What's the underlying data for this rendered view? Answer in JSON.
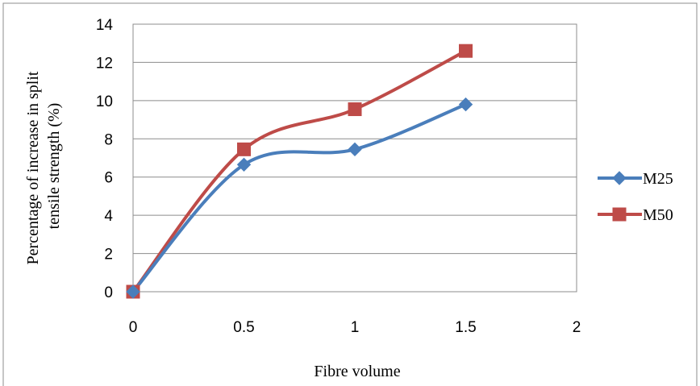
{
  "chart_data": {
    "type": "line",
    "smooth": true,
    "title": "",
    "xlabel": "Fibre volume",
    "ylabel_lines": [
      "Percentage of increase in split",
      "tensile strength (%)"
    ],
    "xlim": [
      0,
      2
    ],
    "ylim": [
      0,
      14
    ],
    "xticks": [
      0,
      0.5,
      1,
      1.5,
      2
    ],
    "xtick_labels": [
      "0",
      "0.5",
      "1",
      "1.5",
      "2"
    ],
    "yticks": [
      0,
      2,
      4,
      6,
      8,
      10,
      12,
      14
    ],
    "ytick_labels": [
      "0",
      "2",
      "4",
      "6",
      "8",
      "10",
      "12",
      "14"
    ],
    "grid": "horizontal",
    "legend": "right",
    "series": [
      {
        "name": "M25",
        "color": "#4a7ebb",
        "marker": "diamond",
        "x": [
          0,
          0.5,
          1,
          1.5
        ],
        "y": [
          0,
          6.65,
          7.45,
          9.8
        ]
      },
      {
        "name": "M50",
        "color": "#be4b48",
        "marker": "square",
        "x": [
          0,
          0.5,
          1,
          1.5
        ],
        "y": [
          0,
          7.45,
          9.55,
          12.6
        ]
      }
    ]
  }
}
